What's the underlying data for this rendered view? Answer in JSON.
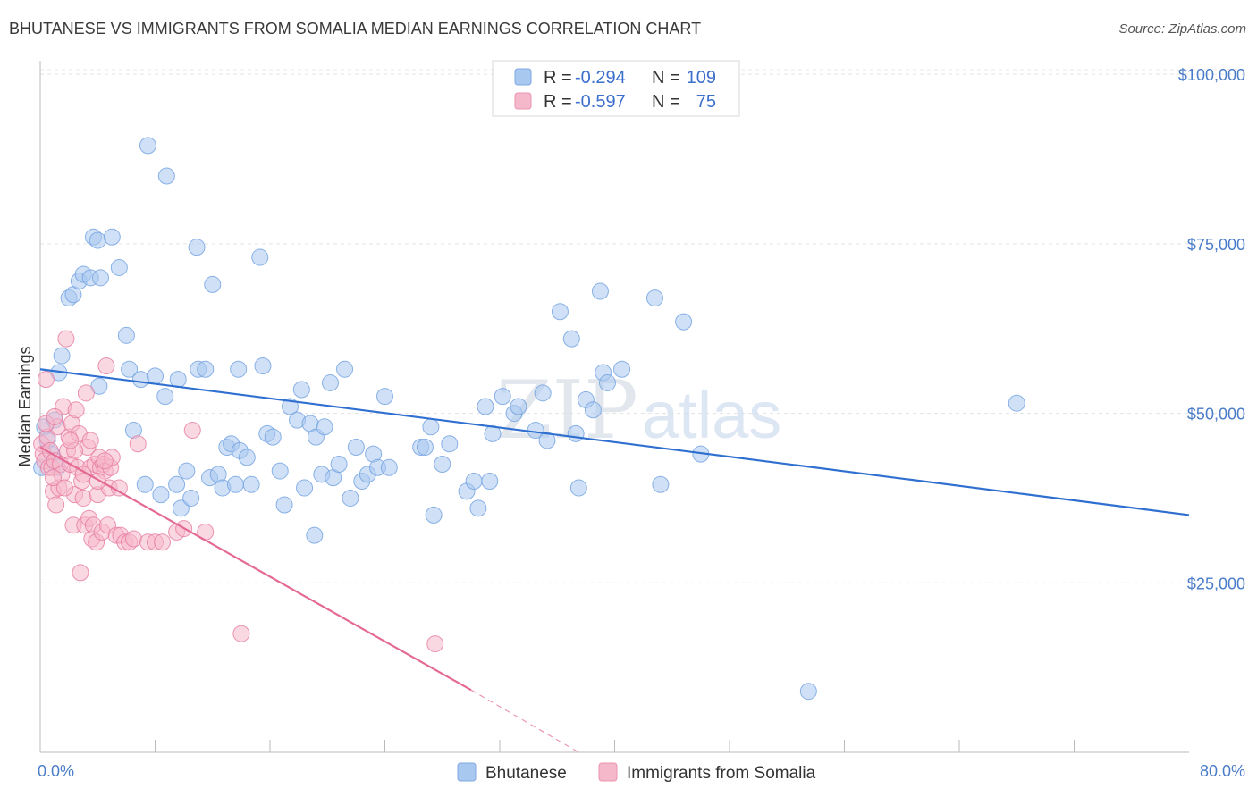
{
  "header": {
    "title": "BHUTANESE VS IMMIGRANTS FROM SOMALIA MEDIAN EARNINGS CORRELATION CHART",
    "source": "Source: ZipAtlas.com"
  },
  "watermark": {
    "zip": "ZIP",
    "atlas": "atlas"
  },
  "legend": {
    "rows": [
      {
        "r_label": "R =",
        "r_value": "-0.294",
        "n_label": "N =",
        "n_value": "109",
        "color": "#a9c8f0"
      },
      {
        "r_label": "R =",
        "r_value": "-0.597",
        "n_label": "N =",
        "n_value": "75",
        "color": "#f5b8cb"
      }
    ]
  },
  "chart_data": {
    "type": "scatter",
    "title": "BHUTANESE VS IMMIGRANTS FROM SOMALIA MEDIAN EARNINGS CORRELATION CHART",
    "ylabel": "Median Earnings",
    "xlabel": "",
    "xlim": [
      0,
      80
    ],
    "ylim": [
      0,
      102000
    ],
    "x_tick_labels": [
      "0.0%",
      "80.0%"
    ],
    "y_ticks": [
      25000,
      50000,
      75000,
      100000
    ],
    "y_tick_labels": [
      "$25,000",
      "$50,000",
      "$75,000",
      "$100,000"
    ],
    "grid": true,
    "legend_position": "top-center",
    "series": [
      {
        "name": "Bhutanese",
        "color": "#6fa0e0",
        "fill": "#a9c8f0",
        "trend": {
          "x": [
            0,
            80
          ],
          "y": [
            56500,
            35000
          ],
          "color": "#2f6fd0"
        },
        "points": [
          [
            0.1,
            42000
          ],
          [
            0.3,
            48000
          ],
          [
            0.5,
            46000
          ],
          [
            0.8,
            44000
          ],
          [
            1.0,
            49000
          ],
          [
            1.2,
            42000
          ],
          [
            1.3,
            56000
          ],
          [
            1.5,
            58500
          ],
          [
            2.0,
            67000
          ],
          [
            2.3,
            67500
          ],
          [
            2.7,
            69500
          ],
          [
            3.0,
            70500
          ],
          [
            3.5,
            70000
          ],
          [
            3.7,
            76000
          ],
          [
            4.0,
            75500
          ],
          [
            4.2,
            70000
          ],
          [
            5.0,
            76000
          ],
          [
            5.5,
            71500
          ],
          [
            6.0,
            61500
          ],
          [
            4.1,
            54000
          ],
          [
            6.2,
            56500
          ],
          [
            6.5,
            47500
          ],
          [
            7.0,
            55000
          ],
          [
            7.3,
            39500
          ],
          [
            7.5,
            89500
          ],
          [
            8.0,
            55500
          ],
          [
            8.4,
            38000
          ],
          [
            8.7,
            52500
          ],
          [
            8.8,
            85000
          ],
          [
            9.5,
            39500
          ],
          [
            9.6,
            55000
          ],
          [
            9.8,
            36000
          ],
          [
            10.2,
            41500
          ],
          [
            10.5,
            37500
          ],
          [
            10.9,
            74500
          ],
          [
            11.0,
            56500
          ],
          [
            11.5,
            56500
          ],
          [
            11.8,
            40500
          ],
          [
            12.0,
            69000
          ],
          [
            12.4,
            41000
          ],
          [
            12.7,
            39000
          ],
          [
            13.0,
            45000
          ],
          [
            13.3,
            45500
          ],
          [
            13.6,
            39500
          ],
          [
            13.8,
            56500
          ],
          [
            13.9,
            44500
          ],
          [
            14.4,
            43500
          ],
          [
            14.7,
            39500
          ],
          [
            15.3,
            73000
          ],
          [
            15.5,
            57000
          ],
          [
            15.8,
            47000
          ],
          [
            16.2,
            46500
          ],
          [
            16.7,
            41500
          ],
          [
            17.0,
            36500
          ],
          [
            17.4,
            51000
          ],
          [
            17.9,
            49000
          ],
          [
            18.2,
            53500
          ],
          [
            18.4,
            39000
          ],
          [
            18.8,
            48500
          ],
          [
            19.1,
            32000
          ],
          [
            19.2,
            46500
          ],
          [
            19.6,
            41000
          ],
          [
            19.8,
            48000
          ],
          [
            20.2,
            54500
          ],
          [
            20.4,
            40500
          ],
          [
            20.8,
            42500
          ],
          [
            21.2,
            56500
          ],
          [
            21.6,
            37500
          ],
          [
            22.0,
            45000
          ],
          [
            22.4,
            40000
          ],
          [
            22.8,
            41000
          ],
          [
            23.2,
            44000
          ],
          [
            23.5,
            42000
          ],
          [
            24.0,
            52500
          ],
          [
            24.3,
            42000
          ],
          [
            26.5,
            45000
          ],
          [
            26.8,
            45000
          ],
          [
            27.2,
            48000
          ],
          [
            27.4,
            35000
          ],
          [
            28.0,
            42500
          ],
          [
            28.5,
            45500
          ],
          [
            29.7,
            38500
          ],
          [
            30.2,
            40000
          ],
          [
            30.5,
            36000
          ],
          [
            31.0,
            51000
          ],
          [
            31.3,
            40000
          ],
          [
            31.5,
            47000
          ],
          [
            32.2,
            52500
          ],
          [
            33.0,
            50000
          ],
          [
            33.3,
            51000
          ],
          [
            34.5,
            47500
          ],
          [
            35.0,
            53000
          ],
          [
            35.3,
            46000
          ],
          [
            36.2,
            65000
          ],
          [
            37.0,
            61000
          ],
          [
            37.3,
            47000
          ],
          [
            37.5,
            39000
          ],
          [
            38.0,
            52000
          ],
          [
            38.5,
            50500
          ],
          [
            39.0,
            68000
          ],
          [
            39.2,
            56000
          ],
          [
            39.5,
            54500
          ],
          [
            40.5,
            56500
          ],
          [
            42.8,
            67000
          ],
          [
            43.2,
            39500
          ],
          [
            44.8,
            63500
          ],
          [
            46.0,
            44000
          ],
          [
            68.0,
            51500
          ],
          [
            53.5,
            9000
          ]
        ]
      },
      {
        "name": "Immigrants from Somalia",
        "color": "#e67aa0",
        "fill": "#f5b8cb",
        "trend": {
          "x": [
            0,
            30
          ],
          "y": [
            45000,
            9200
          ],
          "color": "#e46a94"
        },
        "trend_dashed": {
          "x": [
            30,
            37.5
          ],
          "y": [
            9200,
            0
          ]
        },
        "points": [
          [
            0.1,
            45500
          ],
          [
            0.2,
            44000
          ],
          [
            0.3,
            43000
          ],
          [
            0.4,
            55000
          ],
          [
            0.5,
            46500
          ],
          [
            0.6,
            42000
          ],
          [
            0.7,
            44500
          ],
          [
            0.8,
            42000
          ],
          [
            0.9,
            38500
          ],
          [
            1.0,
            43000
          ],
          [
            1.1,
            36500
          ],
          [
            1.2,
            48000
          ],
          [
            1.3,
            39000
          ],
          [
            1.4,
            42500
          ],
          [
            1.5,
            41000
          ],
          [
            1.6,
            51000
          ],
          [
            1.8,
            61000
          ],
          [
            1.9,
            44500
          ],
          [
            2.0,
            46500
          ],
          [
            2.1,
            42500
          ],
          [
            2.2,
            48500
          ],
          [
            2.3,
            33500
          ],
          [
            2.4,
            38000
          ],
          [
            2.5,
            50500
          ],
          [
            2.6,
            42000
          ],
          [
            2.7,
            47000
          ],
          [
            2.8,
            26500
          ],
          [
            2.9,
            40000
          ],
          [
            3.0,
            37500
          ],
          [
            3.1,
            33500
          ],
          [
            3.2,
            53000
          ],
          [
            3.3,
            45000
          ],
          [
            3.4,
            34500
          ],
          [
            3.5,
            42000
          ],
          [
            3.6,
            31500
          ],
          [
            3.7,
            33500
          ],
          [
            3.8,
            42500
          ],
          [
            3.9,
            31000
          ],
          [
            4.0,
            38000
          ],
          [
            4.1,
            43500
          ],
          [
            4.2,
            42000
          ],
          [
            4.3,
            32500
          ],
          [
            4.4,
            42500
          ],
          [
            4.5,
            41500
          ],
          [
            4.6,
            57000
          ],
          [
            4.7,
            33500
          ],
          [
            4.8,
            39000
          ],
          [
            4.9,
            42000
          ],
          [
            5.0,
            43500
          ],
          [
            5.3,
            32000
          ],
          [
            5.6,
            32000
          ],
          [
            5.9,
            31000
          ],
          [
            6.2,
            31000
          ],
          [
            6.5,
            31500
          ],
          [
            6.8,
            45500
          ],
          [
            7.5,
            31000
          ],
          [
            8.0,
            31000
          ],
          [
            8.5,
            31000
          ],
          [
            9.5,
            32500
          ],
          [
            10.0,
            33000
          ],
          [
            10.6,
            47500
          ],
          [
            11.5,
            32500
          ],
          [
            14.0,
            17500
          ],
          [
            27.5,
            16000
          ],
          [
            0.9,
            40500
          ],
          [
            1.7,
            39000
          ],
          [
            2.4,
            44500
          ],
          [
            3.5,
            46000
          ],
          [
            4.0,
            40000
          ],
          [
            0.4,
            48500
          ],
          [
            1.0,
            49500
          ],
          [
            2.1,
            46000
          ],
          [
            3.0,
            41000
          ],
          [
            4.5,
            43000
          ],
          [
            5.5,
            39000
          ]
        ]
      }
    ]
  },
  "bottom_legend": {
    "items": [
      {
        "label": "Bhutanese",
        "color": "#a9c8f0"
      },
      {
        "label": "Immigrants from Somalia",
        "color": "#f5b8cb"
      }
    ]
  }
}
